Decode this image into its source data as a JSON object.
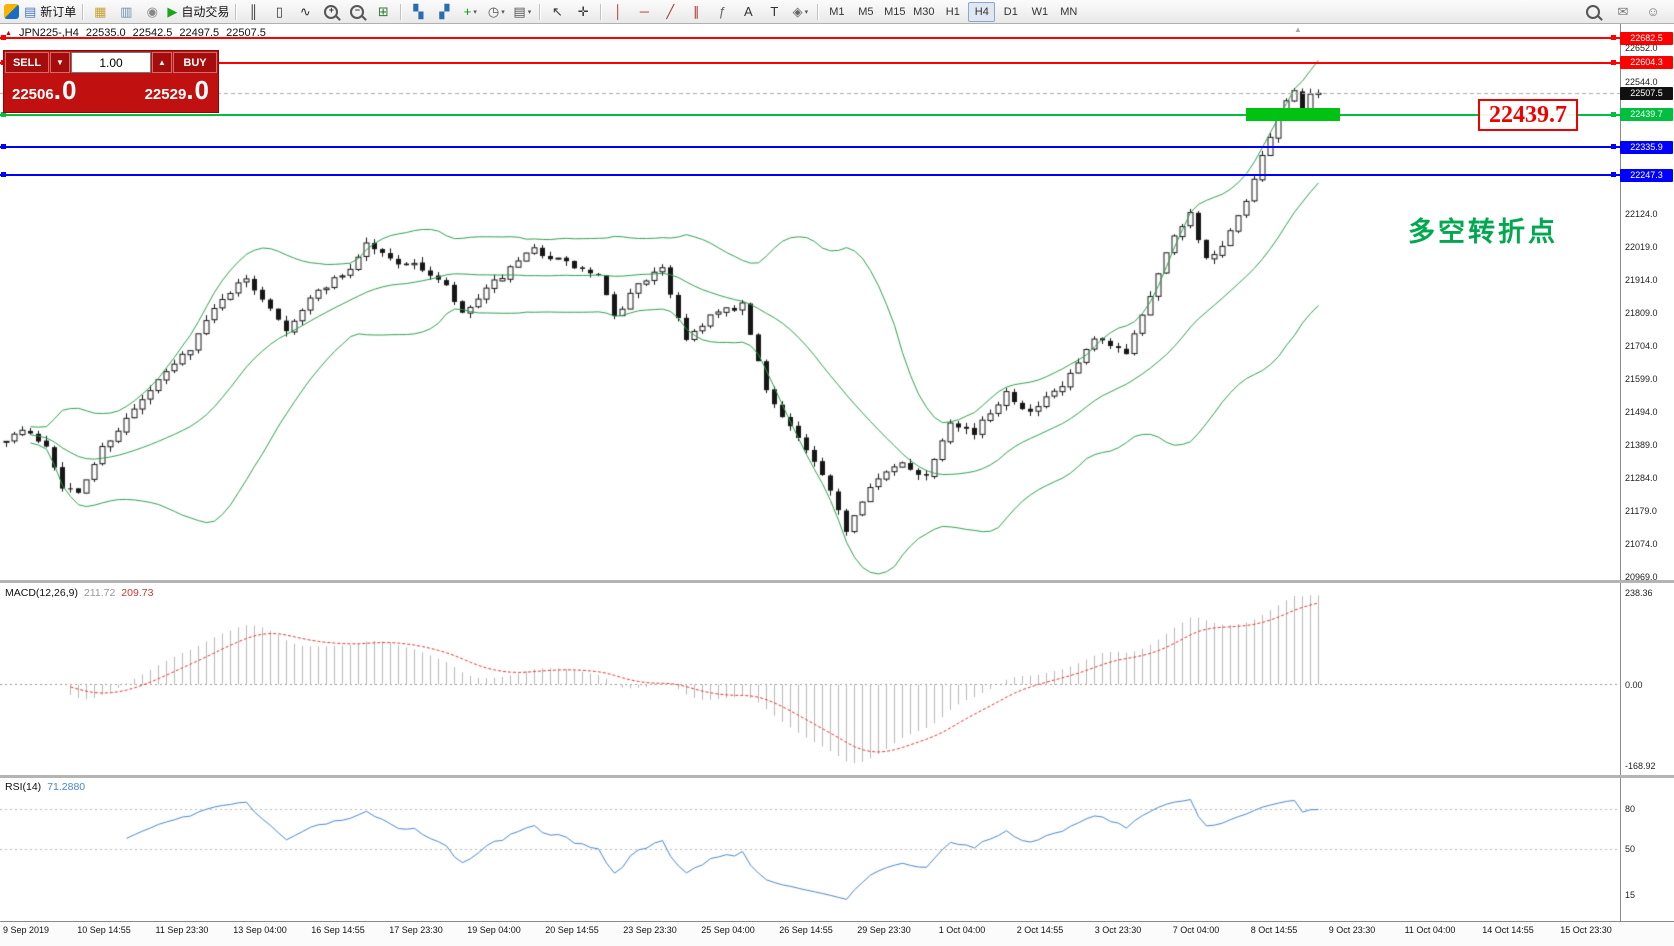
{
  "toolbar": {
    "timeframes": [
      "M1",
      "M5",
      "M15",
      "M30",
      "H1",
      "H4",
      "D1",
      "W1",
      "MN"
    ],
    "active_timeframe": "H4",
    "items": [
      {
        "t": "app",
        "name": "app-icon"
      },
      {
        "t": "btn",
        "name": "new-order-button",
        "glyph": "▤",
        "color": "#4a7bc8",
        "label": "新订单"
      },
      {
        "t": "sep"
      },
      {
        "t": "btn",
        "name": "new-chart-icon",
        "glyph": "▦",
        "color": "#c8a132"
      },
      {
        "t": "btn",
        "name": "profiles-icon",
        "glyph": "▥",
        "color": "#6f8fae"
      },
      {
        "t": "btn",
        "name": "alerts-icon",
        "glyph": "◉",
        "color": "#888888"
      },
      {
        "t": "btn",
        "name": "autotrading-button",
        "glyph": "▶",
        "color": "#1fa31f",
        "label": "自动交易"
      },
      {
        "t": "sep"
      },
      {
        "t": "btn",
        "name": "bars-chart-icon",
        "glyph": "║",
        "color": "#333333"
      },
      {
        "t": "btn",
        "name": "candlestick-chart-icon",
        "glyph": "▯",
        "color": "#333333"
      },
      {
        "t": "btn",
        "name": "line-chart-icon",
        "glyph": "∿",
        "color": "#333333"
      },
      {
        "t": "mag",
        "name": "zoom-in-icon",
        "glyph": "+"
      },
      {
        "t": "mag",
        "name": "zoom-out-icon",
        "glyph": "−"
      },
      {
        "t": "btn",
        "name": "grid-icon",
        "glyph": "⊞",
        "color": "#2e7d32"
      },
      {
        "t": "sep"
      },
      {
        "t": "btn",
        "name": "tile-windows-icon",
        "glyph": "▚",
        "color": "#2b6cb0"
      },
      {
        "t": "btn",
        "name": "cascade-windows-icon",
        "glyph": "▞",
        "color": "#2b6cb0"
      },
      {
        "t": "btnc",
        "name": "indicators-button",
        "glyph": "+",
        "color": "#0a9a0a"
      },
      {
        "t": "btnc",
        "name": "period-button",
        "glyph": "◷",
        "color": "#555555"
      },
      {
        "t": "btnc",
        "name": "template-button",
        "glyph": "▤",
        "color": "#555555"
      },
      {
        "t": "sep"
      },
      {
        "t": "btn",
        "name": "cursor-icon",
        "glyph": "↖",
        "color": "#333333"
      },
      {
        "t": "btn",
        "name": "crosshair-icon",
        "glyph": "✛",
        "color": "#333333"
      },
      {
        "t": "sep"
      },
      {
        "t": "btn",
        "name": "vertical-line-icon",
        "glyph": "│",
        "color": "#aa3333"
      },
      {
        "t": "btn",
        "name": "horizontal-line-icon",
        "glyph": "─",
        "color": "#aa3333"
      },
      {
        "t": "btn",
        "name": "trendline-icon",
        "glyph": "╱",
        "color": "#aa3333"
      },
      {
        "t": "btn",
        "name": "equidistant-channel-icon",
        "glyph": "∥",
        "color": "#aa3333"
      },
      {
        "t": "btn",
        "name": "fibonacci-icon",
        "glyph": "ƒ",
        "color": "#666666"
      },
      {
        "t": "btn",
        "name": "text-icon",
        "glyph": "A",
        "color": "#333333"
      },
      {
        "t": "btn",
        "name": "text-label-icon",
        "glyph": "T",
        "color": "#333333"
      },
      {
        "t": "btnc",
        "name": "arrows-button",
        "glyph": "◈",
        "color": "#666666"
      },
      {
        "t": "sep"
      },
      {
        "t": "tf"
      }
    ],
    "right_items": [
      {
        "t": "mag",
        "name": "search-icon",
        "glyph": ""
      },
      {
        "t": "btn",
        "name": "chat-icon",
        "glyph": "✉",
        "color": "#777777"
      },
      {
        "t": "btn",
        "name": "community-icon",
        "glyph": "☺",
        "color": "#777777"
      }
    ]
  },
  "symbol_bar": {
    "symbol": "JPN225-,H4",
    "open": "22535.0",
    "high": "22542.5",
    "low": "22497.5",
    "close": "22507.5"
  },
  "trade_panel": {
    "sell_label": "SELL",
    "buy_label": "BUY",
    "volume": "1.00",
    "vol_up_glyph": "▲",
    "vol_down_glyph": "▼",
    "sell_price_main": "22506",
    "sell_price_frac": ".0",
    "buy_price_main": "22529",
    "buy_price_frac": ".0"
  },
  "annotations": {
    "big_price_label": "22439.7",
    "turning_point_text": "多空转折点"
  },
  "price_axis": {
    "plain_ticks": [
      "22652.0",
      "22544.0",
      "22124.0",
      "22019.0",
      "21914.0",
      "21809.0",
      "21704.0",
      "21599.0",
      "21494.0",
      "21389.0",
      "21284.0",
      "21179.0",
      "21074.0",
      "20969.0"
    ],
    "current_price": {
      "value": 22507.5,
      "label": "22507.5"
    },
    "levels": [
      {
        "value": 22682.5,
        "label": "22682.5",
        "color_key": "red"
      },
      {
        "value": 22604.3,
        "label": "22604.3",
        "color_key": "red"
      },
      {
        "value": 22439.7,
        "label": "22439.7",
        "color_key": "green"
      },
      {
        "value": 22335.9,
        "label": "22335.9",
        "color_key": "blue"
      },
      {
        "value": 22247.3,
        "label": "22247.3",
        "color_key": "blue"
      }
    ]
  },
  "indicators": {
    "macd": {
      "name": "MACD(12,26,9)",
      "main_value": "211.72",
      "signal_value": "209.73",
      "axis_labels": [
        "238.36",
        "0.00",
        "-168.92"
      ]
    },
    "rsi": {
      "name": "RSI(14)",
      "value": "71.2880",
      "axis_labels": [
        "80",
        "50",
        "15"
      ],
      "level_lines": [
        80,
        50
      ]
    }
  },
  "time_axis": {
    "labels": [
      "9 Sep 2019",
      "10 Sep 14:55",
      "11 Sep 23:30",
      "13 Sep 04:00",
      "16 Sep 14:55",
      "17 Sep 23:30",
      "19 Sep 04:00",
      "20 Sep 14:55",
      "23 Sep 23:30",
      "25 Sep 04:00",
      "26 Sep 14:55",
      "29 Sep 23:30",
      "1 Oct 04:00",
      "2 Oct 14:55",
      "3 Oct 23:30",
      "7 Oct 04:00",
      "8 Oct 14:55",
      "9 Oct 23:30",
      "11 Oct 04:00",
      "14 Oct 14:55",
      "15 Oct 23:30"
    ]
  },
  "misc_icons": {
    "chart_shift_marker": "▲",
    "symbol_marker": "▲"
  },
  "chart_data": {
    "type": "candlestick",
    "symbol": "JPN225-",
    "timeframe": "H4",
    "visible_price_range": [
      20960,
      22728
    ],
    "num_candles": 165,
    "last_close": 22507.5,
    "noise_seed": 7,
    "noise_amp": 22,
    "price_path": [
      [
        0,
        21400
      ],
      [
        3,
        21435
      ],
      [
        6,
        21390
      ],
      [
        8,
        21260
      ],
      [
        10,
        21230
      ],
      [
        13,
        21380
      ],
      [
        16,
        21470
      ],
      [
        20,
        21590
      ],
      [
        24,
        21700
      ],
      [
        28,
        21860
      ],
      [
        31,
        21915
      ],
      [
        34,
        21830
      ],
      [
        36,
        21760
      ],
      [
        40,
        21880
      ],
      [
        44,
        21950
      ],
      [
        46,
        22030
      ],
      [
        49,
        21980
      ],
      [
        53,
        21950
      ],
      [
        56,
        21890
      ],
      [
        58,
        21800
      ],
      [
        62,
        21905
      ],
      [
        67,
        22010
      ],
      [
        71,
        21965
      ],
      [
        75,
        21925
      ],
      [
        77,
        21790
      ],
      [
        80,
        21905
      ],
      [
        83,
        21945
      ],
      [
        86,
        21725
      ],
      [
        89,
        21800
      ],
      [
        93,
        21830
      ],
      [
        96,
        21560
      ],
      [
        99,
        21450
      ],
      [
        103,
        21290
      ],
      [
        106,
        21120
      ],
      [
        109,
        21265
      ],
      [
        113,
        21330
      ],
      [
        116,
        21290
      ],
      [
        119,
        21470
      ],
      [
        122,
        21425
      ],
      [
        126,
        21560
      ],
      [
        129,
        21490
      ],
      [
        133,
        21575
      ],
      [
        137,
        21720
      ],
      [
        141,
        21685
      ],
      [
        144,
        21870
      ],
      [
        147,
        22060
      ],
      [
        149,
        22125
      ],
      [
        151,
        21975
      ],
      [
        153,
        22015
      ],
      [
        156,
        22160
      ],
      [
        158,
        22300
      ],
      [
        160,
        22430
      ],
      [
        162,
        22525
      ],
      [
        163,
        22450
      ],
      [
        164,
        22495
      ]
    ],
    "overlays": {
      "bollinger": {
        "period": 20,
        "deviation": 2
      }
    },
    "green_zone": {
      "price": 22439.7,
      "candle_start": 155,
      "candle_end": 166
    }
  },
  "colors": {
    "band": "#2f9e4f",
    "bull": "#ffffff",
    "bear": "#161616",
    "wick": "#161616",
    "macd_hist": "#b8b8b8",
    "macd_signal": "#e03535",
    "rsi_line": "#4a86c8",
    "level_red": "#ff0000",
    "level_blue": "#0000ff",
    "level_green": "#00bf3f",
    "rect_green": "#00c213",
    "bid": "#aaaaaa"
  }
}
